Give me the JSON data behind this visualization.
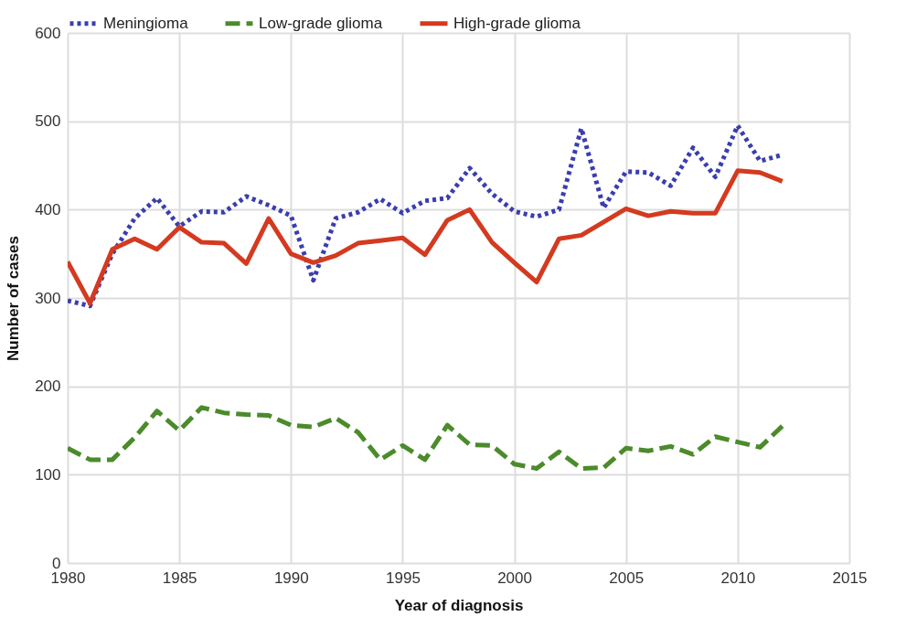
{
  "chart_data": {
    "type": "line",
    "xlabel": "Year of diagnosis",
    "ylabel": "Number of cases",
    "x": [
      1980,
      1981,
      1982,
      1983,
      1984,
      1985,
      1986,
      1987,
      1988,
      1989,
      1990,
      1991,
      1992,
      1993,
      1994,
      1995,
      1996,
      1997,
      1998,
      1999,
      2000,
      2001,
      2002,
      2003,
      2004,
      2005,
      2006,
      2007,
      2008,
      2009,
      2010,
      2011,
      2012
    ],
    "series": [
      {
        "name": "Meningioma",
        "color": "#3a3eae",
        "line_style": "dotted",
        "values": [
          297,
          291,
          350,
          390,
          413,
          381,
          398,
          397,
          415,
          405,
          393,
          320,
          390,
          397,
          412,
          396,
          410,
          413,
          447,
          418,
          398,
          392,
          400,
          492,
          402,
          443,
          442,
          427,
          470,
          437,
          495,
          455,
          462
        ]
      },
      {
        "name": "Low-grade glioma",
        "color": "#4b8b2b",
        "line_style": "dashed",
        "values": [
          130,
          117,
          117,
          142,
          172,
          150,
          176,
          170,
          168,
          167,
          156,
          154,
          164,
          148,
          117,
          133,
          117,
          156,
          134,
          133,
          112,
          107,
          126,
          107,
          108,
          130,
          127,
          132,
          123,
          143,
          137,
          131,
          155
        ]
      },
      {
        "name": "High-grade glioma",
        "color": "#d43a1f",
        "line_style": "solid",
        "values": [
          341,
          294,
          355,
          367,
          355,
          380,
          363,
          362,
          339,
          390,
          350,
          340,
          348,
          362,
          365,
          368,
          349,
          388,
          400,
          363,
          340,
          318,
          367,
          371,
          386,
          401,
          393,
          398,
          396,
          396,
          444,
          442,
          432
        ]
      }
    ],
    "xlim": [
      1980,
      2015
    ],
    "xticks": [
      1980,
      1985,
      1990,
      1995,
      2000,
      2005,
      2010,
      2015
    ],
    "ylim": [
      0,
      600
    ],
    "yticks": [
      0,
      100,
      200,
      300,
      400,
      500,
      600
    ],
    "grid": true,
    "legend": "top"
  }
}
